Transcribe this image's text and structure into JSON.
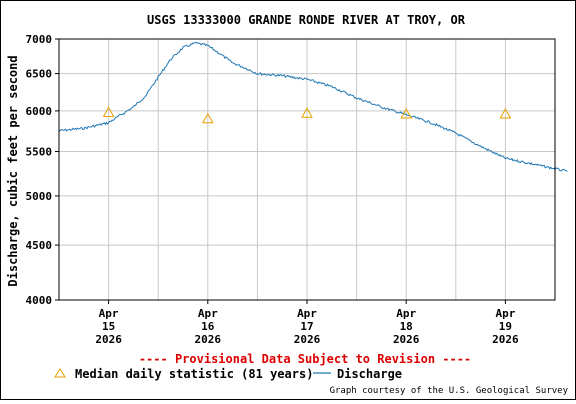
{
  "chart_data": {
    "type": "line",
    "title": "USGS 13333000 GRANDE RONDE RIVER AT TROY, OR",
    "ylabel": "Discharge, cubic feet per second",
    "y_scale": "log",
    "ylim": [
      4000,
      7000
    ],
    "y_ticks": [
      "4000",
      "4500",
      "5000",
      "5500",
      "6000",
      "6500",
      "7000"
    ],
    "x_range_days": [
      "2026-04-14T12:00",
      "2026-04-19T12:00"
    ],
    "x_ticks": [
      {
        "month": "Apr",
        "day": "15",
        "year": "2026"
      },
      {
        "month": "Apr",
        "day": "16",
        "year": "2026"
      },
      {
        "month": "Apr",
        "day": "17",
        "year": "2026"
      },
      {
        "month": "Apr",
        "day": "18",
        "year": "2026"
      },
      {
        "month": "Apr",
        "day": "19",
        "year": "2026"
      }
    ],
    "grid": true,
    "series": [
      {
        "name": "Discharge",
        "color": "#1f77b4",
        "points": [
          [
            "2026-04-14T12:00",
            5750
          ],
          [
            "2026-04-14T18:00",
            5780
          ],
          [
            "2026-04-15T00:00",
            5850
          ],
          [
            "2026-04-15T03:00",
            5950
          ],
          [
            "2026-04-15T06:00",
            6050
          ],
          [
            "2026-04-15T09:00",
            6200
          ],
          [
            "2026-04-15T12:00",
            6450
          ],
          [
            "2026-04-15T15:00",
            6700
          ],
          [
            "2026-04-15T18:00",
            6870
          ],
          [
            "2026-04-15T21:00",
            6940
          ],
          [
            "2026-04-16T00:00",
            6900
          ],
          [
            "2026-04-16T03:00",
            6780
          ],
          [
            "2026-04-16T06:00",
            6650
          ],
          [
            "2026-04-16T09:00",
            6580
          ],
          [
            "2026-04-16T12:00",
            6500
          ],
          [
            "2026-04-16T18:00",
            6470
          ],
          [
            "2026-04-17T00:00",
            6420
          ],
          [
            "2026-04-17T06:00",
            6320
          ],
          [
            "2026-04-17T12:00",
            6170
          ],
          [
            "2026-04-17T18:00",
            6050
          ],
          [
            "2026-04-18T00:00",
            5950
          ],
          [
            "2026-04-18T06:00",
            5850
          ],
          [
            "2026-04-18T12:00",
            5720
          ],
          [
            "2026-04-18T18:00",
            5560
          ],
          [
            "2026-04-19T00:00",
            5420
          ],
          [
            "2026-04-19T06:00",
            5360
          ],
          [
            "2026-04-19T12:00",
            5300
          ],
          [
            "2026-04-19T15:00",
            5270
          ]
        ]
      },
      {
        "name": "Median daily statistic (81 years)",
        "marker": "triangle",
        "color": "#e8a000",
        "points": [
          [
            "2026-04-15T00:00",
            5980
          ],
          [
            "2026-04-16T00:00",
            5900
          ],
          [
            "2026-04-17T00:00",
            5970
          ],
          [
            "2026-04-18T00:00",
            5960
          ],
          [
            "2026-04-19T00:00",
            5960
          ]
        ]
      }
    ],
    "provisional_note": "---- Provisional Data Subject to Revision ----",
    "legend": {
      "placement": "bottom",
      "median_label": "Median daily statistic (81 years)",
      "discharge_label": "Discharge"
    },
    "credit": "Graph courtesy of the U.S. Geological Survey"
  }
}
